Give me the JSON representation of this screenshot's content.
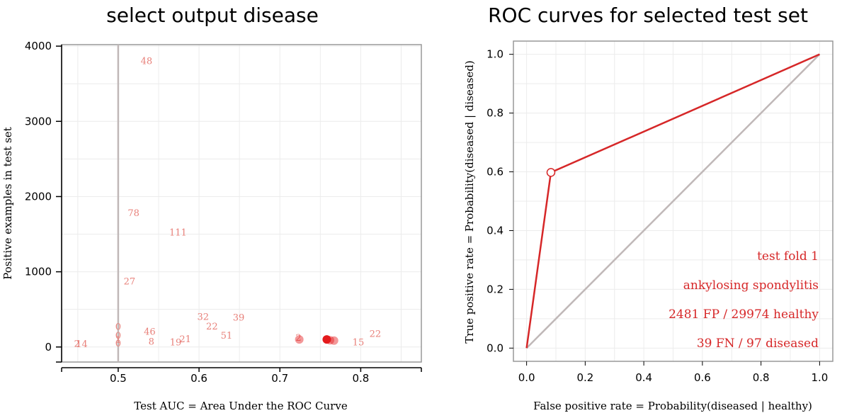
{
  "left_chart": {
    "title": "select output disease",
    "xlabel": "Test AUC = Area Under the ROC Curve",
    "ylabel": "Positive examples in test set",
    "x_ticks": [
      "0.5",
      "0.6",
      "0.7",
      "0.8"
    ],
    "y_ticks": [
      "0",
      "1000",
      "2000",
      "3000",
      "4000"
    ]
  },
  "right_chart": {
    "title": "ROC curves for selected test set",
    "xlabel": "False positive rate = Probability(diseased | healthy)",
    "ylabel": "True positive rate = Probability(diseased | diseased)",
    "x_ticks": [
      "0.0",
      "0.2",
      "0.4",
      "0.6",
      "0.8",
      "1.0"
    ],
    "y_ticks": [
      "0.0",
      "0.2",
      "0.4",
      "0.6",
      "0.8",
      "1.0"
    ],
    "info_lines": [
      "test fold 1",
      "ankylosing spondylitis",
      "2481 FP / 29974 healthy",
      "39 FN / 97 diseased"
    ]
  },
  "colors": {
    "curve": "#d62728",
    "label": "#e8807a",
    "diagonal": "#c0b8b8",
    "point_selected": "#e41a1c"
  },
  "chart_data": [
    {
      "type": "scatter",
      "title": "select output disease",
      "xlabel": "Test AUC = Area Under the ROC Curve",
      "ylabel": "Positive examples in test set",
      "xlim": [
        0.43,
        0.875
      ],
      "ylim": [
        -200,
        4020
      ],
      "reference_line_x": 0.5,
      "labels": [
        {
          "text": "48",
          "x": 0.535,
          "y": 3800
        },
        {
          "text": "78",
          "x": 0.519,
          "y": 1780
        },
        {
          "text": "111",
          "x": 0.574,
          "y": 1520
        },
        {
          "text": "27",
          "x": 0.514,
          "y": 870
        },
        {
          "text": "32",
          "x": 0.605,
          "y": 400
        },
        {
          "text": "39",
          "x": 0.649,
          "y": 390
        },
        {
          "text": "22",
          "x": 0.616,
          "y": 270
        },
        {
          "text": "46",
          "x": 0.539,
          "y": 200
        },
        {
          "text": "51",
          "x": 0.634,
          "y": 150
        },
        {
          "text": "21",
          "x": 0.583,
          "y": 100
        },
        {
          "text": "19",
          "x": 0.571,
          "y": 60
        },
        {
          "text": "8",
          "x": 0.541,
          "y": 70
        },
        {
          "text": "22",
          "x": 0.818,
          "y": 170
        },
        {
          "text": "15",
          "x": 0.797,
          "y": 60
        },
        {
          "text": "2",
          "x": 0.449,
          "y": 40
        },
        {
          "text": "14",
          "x": 0.455,
          "y": 35
        },
        {
          "text": "0",
          "x": 0.5,
          "y": 265
        },
        {
          "text": "0",
          "x": 0.5,
          "y": 150
        },
        {
          "text": "1",
          "x": 0.5,
          "y": 90
        },
        {
          "text": "0",
          "x": 0.5,
          "y": 45
        },
        {
          "text": "2",
          "x": 0.723,
          "y": 120
        }
      ],
      "points": [
        {
          "x": 0.724,
          "y": 100,
          "selected": false
        },
        {
          "x": 0.767,
          "y": 85,
          "selected": false
        },
        {
          "x": 0.762,
          "y": 90,
          "selected": false
        },
        {
          "x": 0.758,
          "y": 100,
          "selected": true
        }
      ]
    },
    {
      "type": "line",
      "title": "ROC curves for selected test set",
      "xlabel": "False positive rate = Probability(diseased | healthy)",
      "ylabel": "True positive rate = Probability(diseased | diseased)",
      "xlim": [
        -0.045,
        1.045
      ],
      "ylim": [
        -0.045,
        1.045
      ],
      "roc": [
        [
          0,
          0
        ],
        [
          0.083,
          0.598
        ],
        [
          1,
          1
        ]
      ],
      "operating_point": [
        0.083,
        0.598
      ],
      "diagonal": [
        [
          0,
          0
        ],
        [
          1,
          1
        ]
      ]
    }
  ]
}
